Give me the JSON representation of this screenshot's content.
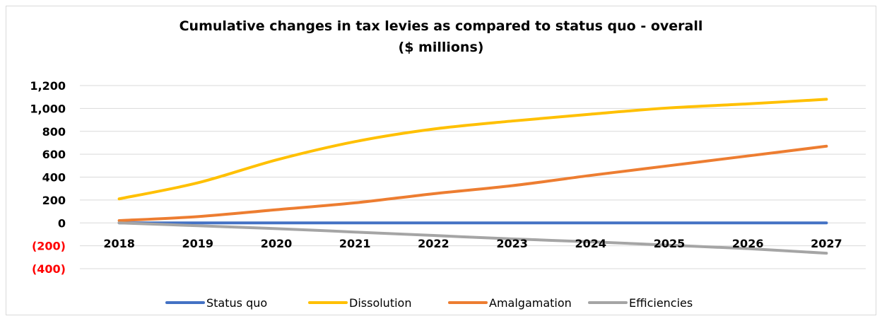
{
  "chart_data": {
    "type": "line",
    "title": "Cumulative changes in tax levies as compared to status quo - overall",
    "subtitle": "($ millions)",
    "categories": [
      "2018",
      "2019",
      "2020",
      "2021",
      "2022",
      "2023",
      "2024",
      "2025",
      "2026",
      "2027"
    ],
    "ylim": [
      -400,
      1200
    ],
    "y_ticks": [
      {
        "value": 1200,
        "label": "1,200",
        "color": "#000000"
      },
      {
        "value": 1000,
        "label": "1,000",
        "color": "#000000"
      },
      {
        "value": 800,
        "label": "800",
        "color": "#000000"
      },
      {
        "value": 600,
        "label": "600",
        "color": "#000000"
      },
      {
        "value": 400,
        "label": "400",
        "color": "#000000"
      },
      {
        "value": 200,
        "label": "200",
        "color": "#000000"
      },
      {
        "value": 0,
        "label": "0",
        "color": "#000000"
      },
      {
        "value": -200,
        "label": "(200)",
        "color": "#ff0000"
      },
      {
        "value": -400,
        "label": "(400)",
        "color": "#ff0000"
      }
    ],
    "grid": true,
    "legend_position": "bottom",
    "series": [
      {
        "name": "Status quo",
        "color": "#4472c4",
        "values": [
          0,
          0,
          0,
          0,
          0,
          0,
          0,
          0,
          0,
          0
        ]
      },
      {
        "name": "Dissolution",
        "color": "#ffc000",
        "values": [
          210,
          350,
          550,
          710,
          820,
          890,
          950,
          1005,
          1040,
          1080
        ]
      },
      {
        "name": "Amalgamation",
        "color": "#ed7d31",
        "values": [
          20,
          55,
          115,
          175,
          255,
          325,
          415,
          500,
          585,
          670
        ]
      },
      {
        "name": "Efficiencies",
        "color": "#a5a5a5",
        "values": [
          0,
          -25,
          -50,
          -80,
          -110,
          -140,
          -165,
          -195,
          -225,
          -265
        ]
      }
    ]
  }
}
